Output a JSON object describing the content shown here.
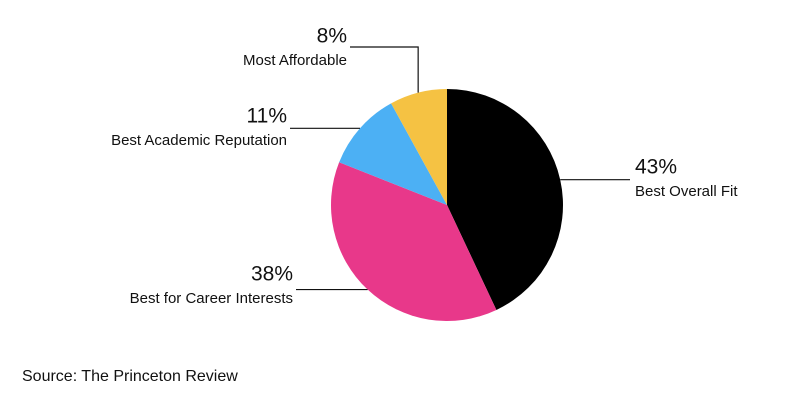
{
  "chart_data": {
    "type": "pie",
    "categories": [
      "Best Overall Fit",
      "Best for Career Interests",
      "Best Academic Reputation",
      "Most Affordable"
    ],
    "values": [
      43,
      38,
      11,
      8
    ],
    "value_labels": [
      "43%",
      "38%",
      "11%",
      "8%"
    ],
    "colors": [
      "#000000",
      "#e8388a",
      "#4cb0f4",
      "#f5c243"
    ],
    "source": "Source: The Princeton Review"
  }
}
